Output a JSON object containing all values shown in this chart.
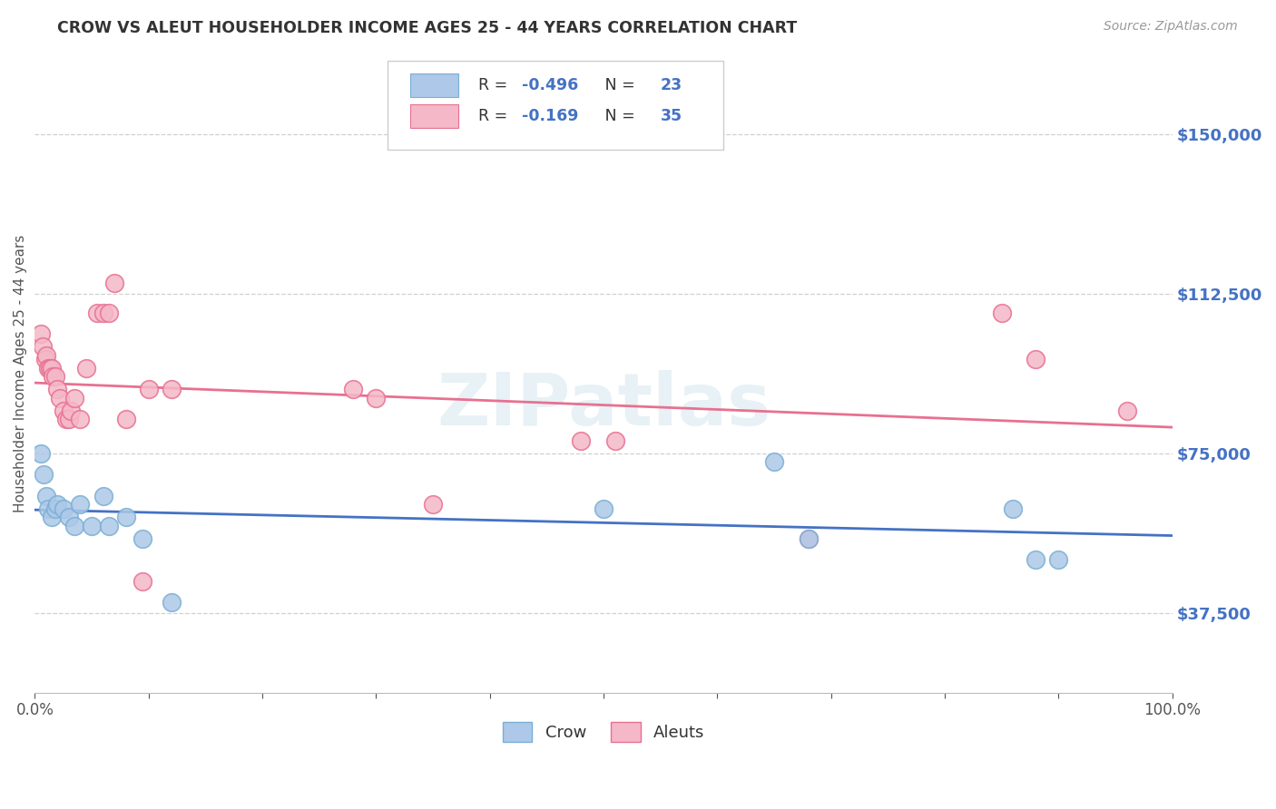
{
  "title": "CROW VS ALEUT HOUSEHOLDER INCOME AGES 25 - 44 YEARS CORRELATION CHART",
  "source": "Source: ZipAtlas.com",
  "ylabel": "Householder Income Ages 25 - 44 years",
  "xlim": [
    0.0,
    1.0
  ],
  "ylim": [
    18750,
    168750
  ],
  "yticks": [
    37500,
    75000,
    112500,
    150000
  ],
  "ytick_labels": [
    "$37,500",
    "$75,000",
    "$112,500",
    "$150,000"
  ],
  "xticks": [
    0.0,
    0.1,
    0.2,
    0.3,
    0.4,
    0.5,
    0.6,
    0.7,
    0.8,
    0.9,
    1.0
  ],
  "xtick_labels": [
    "0.0%",
    "",
    "",
    "",
    "",
    "",
    "",
    "",
    "",
    "",
    "100.0%"
  ],
  "background_color": "#ffffff",
  "grid_color": "#d0d0d0",
  "watermark": "ZIPatlas",
  "crow_color": "#adc8e8",
  "crow_edge_color": "#7aafd4",
  "crow_line_color": "#4472c4",
  "crow_R": -0.496,
  "crow_N": 23,
  "aleut_color": "#f4b8c8",
  "aleut_edge_color": "#e87090",
  "aleut_line_color": "#e87090",
  "aleut_R": -0.169,
  "aleut_N": 35,
  "crow_x": [
    0.005,
    0.008,
    0.01,
    0.012,
    0.015,
    0.018,
    0.02,
    0.025,
    0.03,
    0.035,
    0.04,
    0.05,
    0.06,
    0.065,
    0.08,
    0.095,
    0.12,
    0.5,
    0.65,
    0.68,
    0.86,
    0.88,
    0.9
  ],
  "crow_y": [
    75000,
    70000,
    65000,
    62000,
    60000,
    62000,
    63000,
    62000,
    60000,
    58000,
    63000,
    58000,
    65000,
    58000,
    60000,
    55000,
    40000,
    62000,
    73000,
    55000,
    62000,
    50000,
    50000
  ],
  "aleut_x": [
    0.005,
    0.007,
    0.009,
    0.01,
    0.012,
    0.013,
    0.015,
    0.016,
    0.018,
    0.02,
    0.022,
    0.025,
    0.028,
    0.03,
    0.032,
    0.035,
    0.04,
    0.045,
    0.055,
    0.06,
    0.065,
    0.07,
    0.08,
    0.095,
    0.1,
    0.12,
    0.28,
    0.3,
    0.35,
    0.48,
    0.51,
    0.68,
    0.85,
    0.88,
    0.96
  ],
  "aleut_y": [
    103000,
    100000,
    97000,
    98000,
    95000,
    95000,
    95000,
    93000,
    93000,
    90000,
    88000,
    85000,
    83000,
    83000,
    85000,
    88000,
    83000,
    95000,
    108000,
    108000,
    108000,
    115000,
    83000,
    45000,
    90000,
    90000,
    90000,
    88000,
    63000,
    78000,
    78000,
    55000,
    108000,
    97000,
    85000
  ],
  "legend_R_color": "#4472c4",
  "legend_text_color": "#333333"
}
